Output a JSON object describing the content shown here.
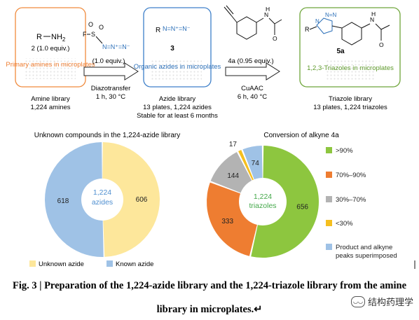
{
  "top": {
    "amine": {
      "reagent": "2 (1.0 equiv.)",
      "box_label": "Primary amines in microplates",
      "below": [
        "Amine library",
        "1,224 amines"
      ]
    },
    "step1": {
      "reagent_amount": "(1.0 equiv.)",
      "conditions": [
        "Diazotransfer",
        "1 h, 30 °C"
      ]
    },
    "azide": {
      "compound": "3",
      "box_label": "Organic azides in microplates",
      "below": [
        "Azide library",
        "13 plates, 1,224 azides",
        "Stable for at least 6 months"
      ]
    },
    "step2": {
      "reagent": "4a (0.95 equiv.)",
      "conditions": [
        "CuAAC",
        "6 h, 40 °C"
      ]
    },
    "triazole": {
      "compound": "5a",
      "box_label": "1,2,3-Triazoles in microplates",
      "below": [
        "Triazole library",
        "13 plates, 1,224 triazoles"
      ]
    }
  },
  "chart_data": [
    {
      "type": "pie",
      "title": "Unknown compounds in the 1,224-azide library",
      "center_label": [
        "1,224",
        "azides"
      ],
      "categories": [
        "Unknown azide",
        "Known azide"
      ],
      "values": [
        606,
        618
      ],
      "colors": [
        "#fde79b",
        "#9fc2e6"
      ],
      "legend_position": "bottom"
    },
    {
      "type": "pie",
      "title": "Conversion of alkyne 4a",
      "center_label": [
        "1,224",
        "triazoles"
      ],
      "categories": [
        ">90%",
        "70%–90%",
        "30%–70%",
        "<30%",
        "Product and alkyne peaks superimposed"
      ],
      "values": [
        656,
        333,
        144,
        17,
        74
      ],
      "colors": [
        "#8dc63f",
        "#ee7d31",
        "#b3b3b3",
        "#f5bf1f",
        "#9fc2e6"
      ],
      "legend_position": "right"
    }
  ],
  "caption": {
    "line1": "Fig. 3 | Preparation of the 1,224-azide library and the 1,224-triazole library from the amine",
    "line2": "library in microplates.↵"
  },
  "watermark": "结构药理学"
}
